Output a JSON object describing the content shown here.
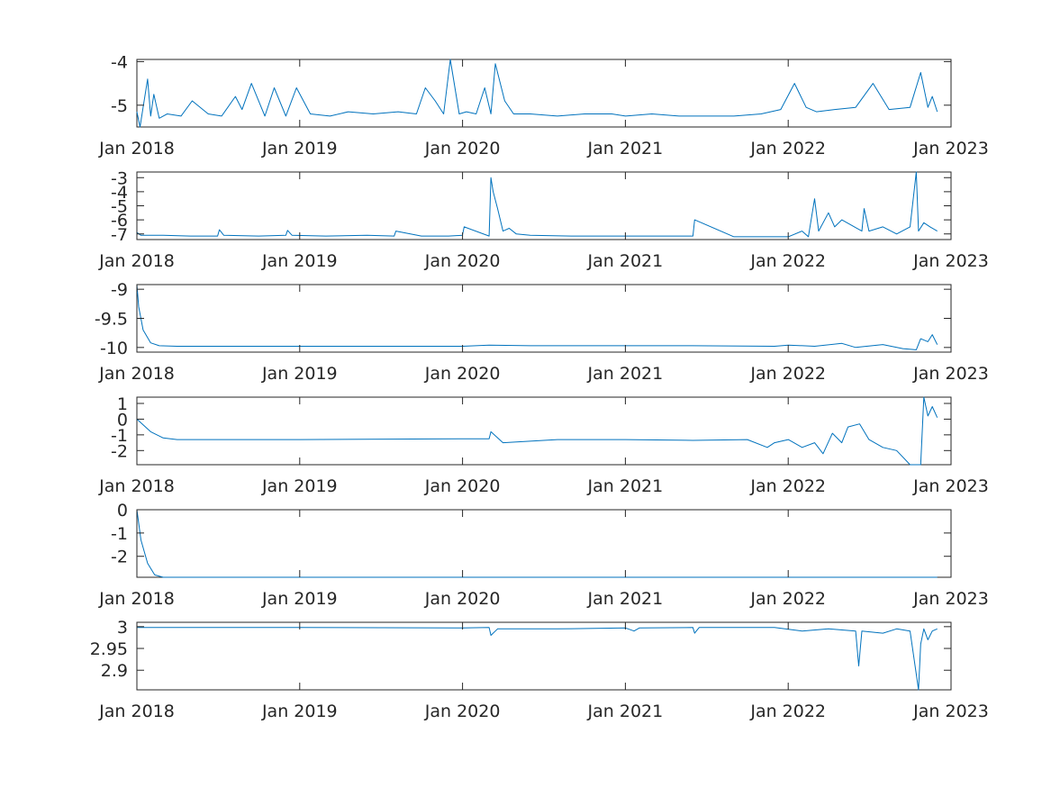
{
  "chart_data": [
    {
      "type": "line",
      "x_ticks": [
        "Jan 2018",
        "Jan 2019",
        "Jan 2020",
        "Jan 2021",
        "Jan 2022",
        "Jan 2023"
      ],
      "xlim": [
        "2018-01-01",
        "2023-01-01"
      ],
      "ylim": [
        -5.5,
        -3.95
      ],
      "y_ticks": [
        "-4",
        "-5"
      ],
      "y_tick_values": [
        -4,
        -5
      ],
      "series": [
        {
          "x": [
            "2018-01-01",
            "2018-01-08",
            "2018-01-15",
            "2018-01-25",
            "2018-02-01",
            "2018-02-08",
            "2018-02-20",
            "2018-03-10",
            "2018-04-10",
            "2018-05-05",
            "2018-06-10",
            "2018-07-10",
            "2018-08-10",
            "2018-08-25",
            "2018-09-15",
            "2018-10-15",
            "2018-11-05",
            "2018-12-01",
            "2018-12-25",
            "2019-01-25",
            "2019-03-10",
            "2019-04-20",
            "2019-06-15",
            "2019-08-10",
            "2019-09-20",
            "2019-10-10",
            "2019-11-01",
            "2019-11-20",
            "2019-12-05",
            "2019-12-25",
            "2020-01-10",
            "2020-02-01",
            "2020-02-20",
            "2020-03-05",
            "2020-03-15",
            "2020-04-05",
            "2020-04-25",
            "2020-06-01",
            "2020-08-01",
            "2020-10-01",
            "2020-12-01",
            "2021-01-01",
            "2021-03-01",
            "2021-05-01",
            "2021-07-01",
            "2021-09-01",
            "2021-11-01",
            "2021-12-15",
            "2022-01-15",
            "2022-02-10",
            "2022-03-05",
            "2022-04-15",
            "2022-06-01",
            "2022-07-10",
            "2022-08-15",
            "2022-10-01",
            "2022-10-25",
            "2022-11-10",
            "2022-11-20",
            "2022-12-01"
          ],
          "values": [
            -5.15,
            -5.5,
            -5.05,
            -4.4,
            -5.25,
            -4.75,
            -5.3,
            -5.2,
            -5.25,
            -4.9,
            -5.2,
            -5.25,
            -4.8,
            -5.1,
            -4.5,
            -5.25,
            -4.6,
            -5.25,
            -4.6,
            -5.2,
            -5.25,
            -5.15,
            -5.2,
            -5.15,
            -5.2,
            -4.6,
            -4.9,
            -5.2,
            -3.95,
            -5.2,
            -5.15,
            -5.2,
            -4.6,
            -5.2,
            -4.05,
            -4.9,
            -5.2,
            -5.2,
            -5.25,
            -5.2,
            -5.2,
            -5.25,
            -5.2,
            -5.25,
            -5.25,
            -5.25,
            -5.2,
            -5.1,
            -4.5,
            -5.05,
            -5.15,
            -5.1,
            -5.05,
            -4.5,
            -5.1,
            -5.05,
            -4.25,
            -5.05,
            -4.8,
            -5.15
          ]
        }
      ]
    },
    {
      "type": "line",
      "x_ticks": [
        "Jan 2018",
        "Jan 2019",
        "Jan 2020",
        "Jan 2021",
        "Jan 2022",
        "Jan 2023"
      ],
      "xlim": [
        "2018-01-01",
        "2023-01-01"
      ],
      "ylim": [
        -7.4,
        -2.6
      ],
      "y_ticks": [
        "-3",
        "-4",
        "-5",
        "-6",
        "-7"
      ],
      "y_tick_values": [
        -3,
        -4,
        -5,
        -6,
        -7
      ],
      "series": [
        {
          "x": [
            "2018-01-01",
            "2018-01-10",
            "2018-03-01",
            "2018-05-01",
            "2018-07-01",
            "2018-07-05",
            "2018-07-15",
            "2018-10-01",
            "2018-12-01",
            "2018-12-05",
            "2018-12-15",
            "2019-03-01",
            "2019-06-01",
            "2019-08-01",
            "2019-08-05",
            "2019-10-01",
            "2019-12-01",
            "2020-01-01",
            "2020-01-05",
            "2020-03-01",
            "2020-03-05",
            "2020-03-10",
            "2020-03-20",
            "2020-04-01",
            "2020-04-15",
            "2020-05-01",
            "2020-06-01",
            "2020-09-01",
            "2020-12-01",
            "2021-02-01",
            "2021-05-01",
            "2021-06-01",
            "2021-06-05",
            "2021-09-01",
            "2021-12-01",
            "2022-01-01",
            "2022-02-01",
            "2022-02-15",
            "2022-03-01",
            "2022-03-10",
            "2022-04-01",
            "2022-04-15",
            "2022-05-01",
            "2022-06-15",
            "2022-06-20",
            "2022-07-01",
            "2022-08-01",
            "2022-09-01",
            "2022-10-01",
            "2022-10-15",
            "2022-10-20",
            "2022-11-01",
            "2022-11-15",
            "2022-12-01"
          ],
          "values": [
            -6.9,
            -7.1,
            -7.1,
            -7.15,
            -7.15,
            -6.7,
            -7.1,
            -7.15,
            -7.1,
            -6.75,
            -7.1,
            -7.15,
            -7.1,
            -7.15,
            -6.8,
            -7.15,
            -7.15,
            -7.1,
            -6.5,
            -7.15,
            -3.0,
            -4.0,
            -5.2,
            -6.8,
            -6.6,
            -7.0,
            -7.1,
            -7.15,
            -7.15,
            -7.15,
            -7.15,
            -7.15,
            -6.0,
            -7.2,
            -7.2,
            -7.2,
            -6.8,
            -7.2,
            -4.5,
            -6.8,
            -5.5,
            -6.5,
            -6.0,
            -6.8,
            -5.2,
            -6.8,
            -6.5,
            -7.0,
            -6.5,
            -2.6,
            -6.8,
            -6.2,
            -6.5,
            -6.8
          ]
        }
      ]
    },
    {
      "type": "line",
      "x_ticks": [
        "Jan 2018",
        "Jan 2019",
        "Jan 2020",
        "Jan 2021",
        "Jan 2022",
        "Jan 2023"
      ],
      "xlim": [
        "2018-01-01",
        "2023-01-01"
      ],
      "ylim": [
        -10.08,
        -8.92
      ],
      "y_ticks": [
        "-9",
        "-9.5",
        "-10"
      ],
      "y_tick_values": [
        -9,
        -9.5,
        -10
      ],
      "series": [
        {
          "x": [
            "2018-01-01",
            "2018-01-05",
            "2018-01-15",
            "2018-02-01",
            "2018-02-20",
            "2018-04-01",
            "2019-01-01",
            "2020-01-01",
            "2020-03-01",
            "2020-06-01",
            "2021-01-01",
            "2021-06-01",
            "2021-12-01",
            "2022-01-01",
            "2022-03-01",
            "2022-05-01",
            "2022-06-01",
            "2022-08-01",
            "2022-09-15",
            "2022-10-15",
            "2022-10-25",
            "2022-11-10",
            "2022-11-20",
            "2022-12-01"
          ],
          "values": [
            -8.92,
            -9.3,
            -9.7,
            -9.92,
            -9.97,
            -9.98,
            -9.98,
            -9.98,
            -9.96,
            -9.97,
            -9.97,
            -9.97,
            -9.98,
            -9.96,
            -9.98,
            -9.93,
            -10.0,
            -9.95,
            -10.02,
            -10.04,
            -9.85,
            -9.9,
            -9.78,
            -9.95
          ]
        }
      ]
    },
    {
      "type": "line",
      "x_ticks": [
        "Jan 2018",
        "Jan 2019",
        "Jan 2020",
        "Jan 2021",
        "Jan 2022",
        "Jan 2023"
      ],
      "xlim": [
        "2018-01-01",
        "2023-01-01"
      ],
      "ylim": [
        -2.9,
        1.4
      ],
      "y_ticks": [
        "1",
        "0",
        "-1",
        "-2"
      ],
      "y_tick_values": [
        1,
        0,
        -1,
        -2
      ],
      "series": [
        {
          "x": [
            "2018-01-01",
            "2018-02-01",
            "2018-03-01",
            "2018-04-01",
            "2019-01-01",
            "2020-01-01",
            "2020-03-01",
            "2020-03-05",
            "2020-04-01",
            "2020-08-01",
            "2021-01-01",
            "2021-06-01",
            "2021-10-01",
            "2021-11-15",
            "2021-12-01",
            "2022-01-01",
            "2022-02-01",
            "2022-03-01",
            "2022-03-20",
            "2022-04-10",
            "2022-05-01",
            "2022-05-15",
            "2022-06-10",
            "2022-07-01",
            "2022-08-01",
            "2022-09-01",
            "2022-10-01",
            "2022-10-25",
            "2022-11-01",
            "2022-11-10",
            "2022-11-20",
            "2022-12-01"
          ],
          "values": [
            0,
            -0.8,
            -1.2,
            -1.3,
            -1.3,
            -1.25,
            -1.25,
            -0.8,
            -1.5,
            -1.3,
            -1.3,
            -1.35,
            -1.3,
            -1.8,
            -1.5,
            -1.3,
            -1.8,
            -1.5,
            -2.2,
            -0.9,
            -1.5,
            -0.5,
            -0.3,
            -1.3,
            -1.8,
            -2.0,
            -2.9,
            -2.9,
            1.4,
            0.2,
            0.8,
            0.1
          ]
        }
      ]
    },
    {
      "type": "line",
      "x_ticks": [
        "Jan 2018",
        "Jan 2019",
        "Jan 2020",
        "Jan 2021",
        "Jan 2022",
        "Jan 2023"
      ],
      "xlim": [
        "2018-01-01",
        "2023-01-01"
      ],
      "ylim": [
        -2.9,
        0
      ],
      "y_ticks": [
        "0",
        "-1",
        "-2"
      ],
      "y_tick_values": [
        0,
        -1,
        -2
      ],
      "series": [
        {
          "x": [
            "2018-01-01",
            "2018-01-10",
            "2018-01-25",
            "2018-02-10",
            "2018-03-01",
            "2018-04-01",
            "2019-01-01",
            "2020-01-01",
            "2021-01-01",
            "2022-01-01",
            "2022-12-01"
          ],
          "values": [
            0,
            -1.3,
            -2.3,
            -2.8,
            -2.9,
            -2.9,
            -2.9,
            -2.9,
            -2.9,
            -2.9,
            -2.9
          ]
        }
      ]
    },
    {
      "type": "line",
      "x_ticks": [
        "Jan 2018",
        "Jan 2019",
        "Jan 2020",
        "Jan 2021",
        "Jan 2022",
        "Jan 2023"
      ],
      "xlim": [
        "2018-01-01",
        "2023-01-01"
      ],
      "ylim": [
        2.855,
        3.01
      ],
      "y_ticks": [
        "3",
        "2.95",
        "2.9"
      ],
      "y_tick_values": [
        3,
        2.95,
        2.9
      ],
      "series": [
        {
          "x": [
            "2018-01-01",
            "2019-01-01",
            "2020-01-01",
            "2020-03-01",
            "2020-03-05",
            "2020-03-20",
            "2020-08-01",
            "2021-01-01",
            "2021-01-20",
            "2021-02-01",
            "2021-06-01",
            "2021-06-05",
            "2021-06-15",
            "2021-12-01",
            "2022-02-01",
            "2022-04-01",
            "2022-06-01",
            "2022-06-08",
            "2022-06-15",
            "2022-08-01",
            "2022-09-01",
            "2022-10-01",
            "2022-10-20",
            "2022-10-25",
            "2022-11-01",
            "2022-11-10",
            "2022-11-20",
            "2022-12-01"
          ],
          "values": [
            2.998,
            2.998,
            2.997,
            2.998,
            2.98,
            2.995,
            2.995,
            2.997,
            2.99,
            2.997,
            2.998,
            2.985,
            2.998,
            2.998,
            2.99,
            2.995,
            2.99,
            2.91,
            2.99,
            2.985,
            2.995,
            2.99,
            2.855,
            2.96,
            2.995,
            2.97,
            2.99,
            2.995
          ]
        }
      ]
    }
  ]
}
